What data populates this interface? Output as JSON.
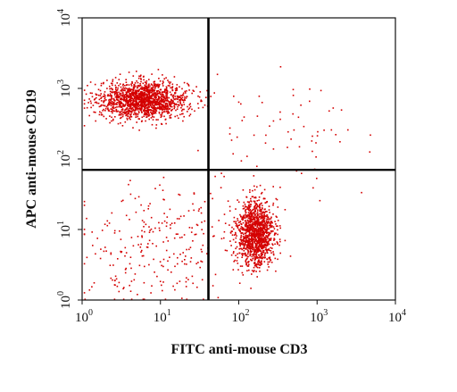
{
  "chart_data": {
    "type": "scatter",
    "title": "",
    "xlabel": "FITC anti-mouse CD3",
    "ylabel": "APC anti-mouse CD19",
    "xscale": "log",
    "yscale": "log",
    "xlim": [
      1,
      10000
    ],
    "ylim": [
      1,
      10000
    ],
    "x_ticks": [
      {
        "base": "10",
        "exp": "0"
      },
      {
        "base": "10",
        "exp": "1"
      },
      {
        "base": "10",
        "exp": "2"
      },
      {
        "base": "10",
        "exp": "3"
      },
      {
        "base": "10",
        "exp": "4"
      }
    ],
    "y_ticks": [
      {
        "base": "10",
        "exp": "0"
      },
      {
        "base": "10",
        "exp": "1"
      },
      {
        "base": "10",
        "exp": "2"
      },
      {
        "base": "10",
        "exp": "3"
      },
      {
        "base": "10",
        "exp": "4"
      }
    ],
    "quadrant_gates": {
      "x": 41,
      "y": 70
    },
    "grid": false,
    "legend": "none",
    "point_color": "#d40000",
    "populations": [
      {
        "center_x": 6,
        "center_y": 700,
        "log_spread_x": 0.28,
        "log_spread_y": 0.13,
        "events": 1600
      },
      {
        "center_x": 160,
        "center_y": 9,
        "log_spread_x": 0.12,
        "log_spread_y": 0.24,
        "events": 1300
      },
      {
        "center_x": 8,
        "center_y": 6,
        "log_spread_x": 0.45,
        "log_spread_y": 0.45,
        "events": 260
      },
      {
        "center_x": 400,
        "center_y": 250,
        "log_spread_x": 0.45,
        "log_spread_y": 0.4,
        "events": 70
      }
    ]
  }
}
